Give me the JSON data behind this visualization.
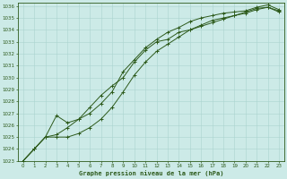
{
  "title": "Graphe pression niveau de la mer (hPa)",
  "bg_color": "#cceae7",
  "grid_color": "#aad4cf",
  "line_color": "#2d5a1b",
  "xlim": [
    0,
    23
  ],
  "ylim": [
    1023,
    1036
  ],
  "xticks": [
    0,
    1,
    2,
    3,
    4,
    5,
    6,
    7,
    8,
    9,
    10,
    11,
    12,
    13,
    14,
    15,
    16,
    17,
    18,
    19,
    20,
    21,
    22,
    23
  ],
  "yticks": [
    1023,
    1024,
    1025,
    1026,
    1027,
    1028,
    1029,
    1030,
    1031,
    1032,
    1033,
    1034,
    1035,
    1036
  ],
  "series1": [
    1023.0,
    1024.0,
    1025.0,
    1025.2,
    1025.8,
    1026.5,
    1027.5,
    1028.5,
    1029.3,
    1030.0,
    1031.3,
    1032.3,
    1033.0,
    1033.2,
    1033.8,
    1034.0,
    1034.3,
    1034.6,
    1034.9,
    1035.2,
    1035.5,
    1035.8,
    1035.9,
    1035.6
  ],
  "series2": [
    1023.0,
    1024.0,
    1025.0,
    1026.8,
    1026.2,
    1026.5,
    1027.0,
    1027.8,
    1028.8,
    1030.5,
    1031.5,
    1032.5,
    1033.2,
    1033.8,
    1034.2,
    1034.7,
    1035.0,
    1035.2,
    1035.4,
    1035.5,
    1035.6,
    1035.9,
    1036.1,
    1035.7
  ],
  "series3": [
    1023.0,
    1024.0,
    1025.0,
    1025.0,
    1025.0,
    1025.3,
    1025.8,
    1026.5,
    1027.5,
    1028.8,
    1030.2,
    1031.3,
    1032.2,
    1032.8,
    1033.4,
    1034.0,
    1034.4,
    1034.8,
    1035.0,
    1035.2,
    1035.4,
    1035.7,
    1035.9,
    1035.5
  ]
}
